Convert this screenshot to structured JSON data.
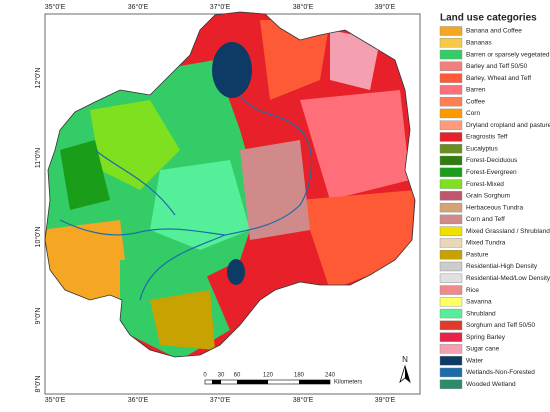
{
  "map": {
    "longitude_labels": [
      "35°0'E",
      "36°0'E",
      "37°0'E",
      "38°0'E",
      "39°0'E"
    ],
    "latitude_labels": [
      "12°0'N",
      "11°0'N",
      "10°0'N",
      "9°0'N",
      "8°0'N"
    ],
    "scale_bar": {
      "labels": [
        "0",
        "30",
        "60",
        "120",
        "180",
        "240"
      ],
      "unit": "Kilometers"
    },
    "north_label": "N"
  },
  "legend": {
    "title": "Land use categories",
    "items": [
      {
        "label": "Banana and Coffee",
        "color": "#f5a623"
      },
      {
        "label": "Bananas",
        "color": "#f7c948"
      },
      {
        "label": "Barren or sparsely vegetated",
        "color": "#33cc66"
      },
      {
        "label": "Barley and Teff 50/50",
        "color": "#f08080"
      },
      {
        "label": "Barley, Wheat and Teff",
        "color": "#ff5a36"
      },
      {
        "label": "Barren",
        "color": "#ff6f7a"
      },
      {
        "label": "Coffee",
        "color": "#ff7f50"
      },
      {
        "label": "Corn",
        "color": "#ff9900"
      },
      {
        "label": "Dryland cropland and pasture",
        "color": "#ff9b7a"
      },
      {
        "label": "Eragrostis Teff",
        "color": "#e8202a"
      },
      {
        "label": "Eucalyptus",
        "color": "#6b8e23"
      },
      {
        "label": "Forest-Deciduous",
        "color": "#2e7d0e"
      },
      {
        "label": "Forest-Evergreen",
        "color": "#1a9e1a"
      },
      {
        "label": "Forest-Mixed",
        "color": "#7ee01e"
      },
      {
        "label": "Grain Sorghum",
        "color": "#c0566e"
      },
      {
        "label": "Herbaceous Tundra",
        "color": "#d4a373"
      },
      {
        "label": "Corn and Teff",
        "color": "#d08a8a"
      },
      {
        "label": "Mixed Grassland / Shrubland",
        "color": "#f0e000"
      },
      {
        "label": "Mixed Tundra",
        "color": "#ead7b7"
      },
      {
        "label": "Pasture",
        "color": "#c8a200"
      },
      {
        "label": "Residential-High Density",
        "color": "#cccccc"
      },
      {
        "label": "Residential-Med/Low Density",
        "color": "#e0e0e0"
      },
      {
        "label": "Rice",
        "color": "#f08a8a"
      },
      {
        "label": "Savanna",
        "color": "#ffff66"
      },
      {
        "label": "Shrubland",
        "color": "#55ee99"
      },
      {
        "label": "Sorghum and Teff 50/50",
        "color": "#e03a2a"
      },
      {
        "label": "Spring Barley",
        "color": "#e8204a"
      },
      {
        "label": "Sugar cane",
        "color": "#f5a0b0"
      },
      {
        "label": "Water",
        "color": "#0d3b66"
      },
      {
        "label": "Wetlands-Non-Forested",
        "color": "#1b6ca8"
      },
      {
        "label": "Wooded Wetland",
        "color": "#2a8c6a"
      }
    ]
  }
}
